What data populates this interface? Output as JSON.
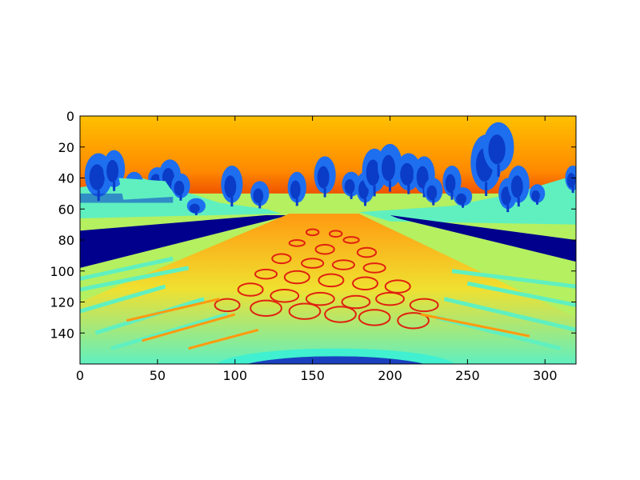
{
  "chart_data": {
    "type": "heatmap",
    "title": "",
    "xlabel": "",
    "ylabel": "",
    "colormap": "jet",
    "image_width": 320,
    "image_height": 160,
    "xlim": [
      0,
      320
    ],
    "ylim": [
      160,
      0
    ],
    "y_axis_inverted": true,
    "x_ticks": [
      {
        "value": 0,
        "label": "0"
      },
      {
        "value": 50,
        "label": "50"
      },
      {
        "value": 100,
        "label": "100"
      },
      {
        "value": 150,
        "label": "150"
      },
      {
        "value": 200,
        "label": "200"
      },
      {
        "value": 250,
        "label": "250"
      },
      {
        "value": 300,
        "label": "300"
      }
    ],
    "y_ticks": [
      {
        "value": 0,
        "label": "0"
      },
      {
        "value": 20,
        "label": "20"
      },
      {
        "value": 40,
        "label": "40"
      },
      {
        "value": 60,
        "label": "60"
      },
      {
        "value": 80,
        "label": "80"
      },
      {
        "value": 100,
        "label": "100"
      },
      {
        "value": 120,
        "label": "120"
      },
      {
        "value": 140,
        "label": "140"
      }
    ],
    "grid": false,
    "scene": "road-camera-frame",
    "colors": {
      "sky_top": "#ffc000",
      "sky_mid": "#ff8a00",
      "sky_horizon": "#e02000",
      "trees": "#1e6ef0",
      "tree_dark": "#0a3cc8",
      "grass_light": "#b4f060",
      "grass_cyan": "#60f0c0",
      "shoulder": "#00008c",
      "road_orange": "#ff9a10",
      "road_yellow": "#f0e030",
      "road_red": "#e02010",
      "hood_cyan": "#40f0d0",
      "hood_blue": "#1a40c0"
    }
  }
}
